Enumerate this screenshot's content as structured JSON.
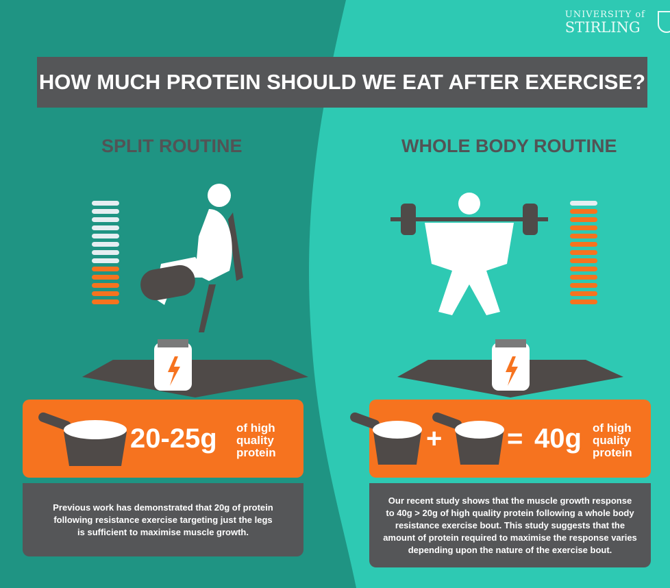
{
  "logo": {
    "line1": "UNIVERSITY of",
    "line2": "STIRLING"
  },
  "title": "HOW MUCH PROTEIN SHOULD WE EAT AFTER EXERCISE?",
  "colors": {
    "dark_teal": "#1f9483",
    "light_teal": "#2ec9b3",
    "orange": "#f6731f",
    "gray": "#555658",
    "bar_white": "#e6eef2"
  },
  "left": {
    "heading": "SPLIT ROUTINE",
    "figure": "leg-extension-icon",
    "level_bars": {
      "white": 8,
      "orange": 5
    },
    "amount": "20-25g",
    "amount_note": "of high quality protein",
    "description": "Previous work has demonstrated that 20g of protein following resistance exercise targeting just the legs is sufficient to maximise muscle growth."
  },
  "right": {
    "heading": "WHOLE BODY ROUTINE",
    "figure": "barbell-squat-icon",
    "level_bars": {
      "white": 1,
      "orange": 12
    },
    "plus": "+",
    "equals": "=",
    "amount": "40g",
    "amount_note": "of high quality protein",
    "description": "Our recent study shows that the muscle growth response to 40g > 20g of high quality protein following a whole body resistance exercise bout. This study suggests that the amount of protein required to maximise the response varies depending upon the nature of the exercise bout."
  }
}
